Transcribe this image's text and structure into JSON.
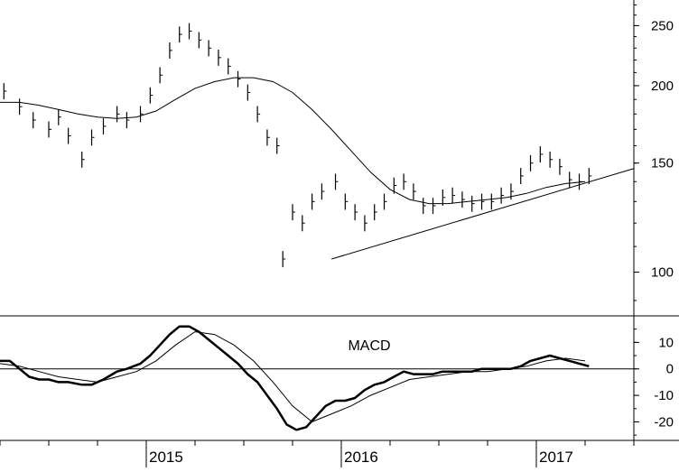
{
  "chart_data": [
    {
      "type": "ohlc",
      "title": "",
      "xlabel": "",
      "ylabel": "",
      "scale": "log",
      "ylim": [
        85,
        275
      ],
      "y_ticks": [
        100,
        150,
        200,
        250
      ],
      "x_year_labels": [
        "2015",
        "2016",
        "2017"
      ],
      "x_range": [
        2014.25,
        2017.5
      ],
      "year_ticks": [
        2015,
        2016,
        2017
      ],
      "grid": false,
      "series": [
        {
          "style": "weekly-bars",
          "points": [
            [
              2014.27,
              196
            ],
            [
              2014.35,
              185
            ],
            [
              2014.42,
              176
            ],
            [
              2014.5,
              170
            ],
            [
              2014.55,
              178
            ],
            [
              2014.6,
              166
            ],
            [
              2014.67,
              152
            ],
            [
              2014.72,
              165
            ],
            [
              2014.78,
              172
            ],
            [
              2014.85,
              180
            ],
            [
              2014.9,
              176
            ],
            [
              2014.97,
              180
            ],
            [
              2015.02,
              193
            ],
            [
              2015.07,
              208
            ],
            [
              2015.12,
              228
            ],
            [
              2015.17,
              242
            ],
            [
              2015.22,
              245
            ],
            [
              2015.27,
              237
            ],
            [
              2015.32,
              230
            ],
            [
              2015.37,
              222
            ],
            [
              2015.42,
              215
            ],
            [
              2015.47,
              205
            ],
            [
              2015.52,
              195
            ],
            [
              2015.57,
              180
            ],
            [
              2015.62,
              165
            ],
            [
              2015.67,
              160
            ],
            [
              2015.7,
              105
            ],
            [
              2015.75,
              125
            ],
            [
              2015.8,
              120
            ],
            [
              2015.85,
              130
            ],
            [
              2015.9,
              135
            ],
            [
              2015.97,
              140
            ],
            [
              2016.02,
              130
            ],
            [
              2016.07,
              125
            ],
            [
              2016.12,
              120
            ],
            [
              2016.17,
              125
            ],
            [
              2016.22,
              130
            ],
            [
              2016.27,
              138
            ],
            [
              2016.32,
              140
            ],
            [
              2016.37,
              135
            ],
            [
              2016.42,
              128
            ],
            [
              2016.47,
              128
            ],
            [
              2016.52,
              132
            ],
            [
              2016.57,
              133
            ],
            [
              2016.62,
              131
            ],
            [
              2016.67,
              129
            ],
            [
              2016.72,
              130
            ],
            [
              2016.77,
              130
            ],
            [
              2016.82,
              133
            ],
            [
              2016.87,
              135
            ],
            [
              2016.92,
              143
            ],
            [
              2016.97,
              150
            ],
            [
              2017.02,
              155
            ],
            [
              2017.07,
              152
            ],
            [
              2017.12,
              148
            ],
            [
              2017.17,
              141
            ],
            [
              2017.22,
              140
            ],
            [
              2017.27,
              143
            ]
          ]
        },
        {
          "style": "moving-average",
          "points": [
            [
              2014.25,
              188
            ],
            [
              2014.35,
              188
            ],
            [
              2014.45,
              186
            ],
            [
              2014.55,
              183
            ],
            [
              2014.65,
              180
            ],
            [
              2014.75,
              178
            ],
            [
              2014.85,
              177
            ],
            [
              2014.95,
              178
            ],
            [
              2015.05,
              182
            ],
            [
              2015.15,
              190
            ],
            [
              2015.25,
              198
            ],
            [
              2015.35,
              203
            ],
            [
              2015.45,
              206
            ],
            [
              2015.55,
              206
            ],
            [
              2015.65,
              203
            ],
            [
              2015.75,
              195
            ],
            [
              2015.85,
              183
            ],
            [
              2015.95,
              170
            ],
            [
              2016.05,
              157
            ],
            [
              2016.15,
              145
            ],
            [
              2016.25,
              136
            ],
            [
              2016.35,
              131
            ],
            [
              2016.45,
              129
            ],
            [
              2016.55,
              129
            ],
            [
              2016.65,
              130
            ],
            [
              2016.75,
              131
            ],
            [
              2016.85,
              132
            ],
            [
              2016.95,
              134
            ],
            [
              2017.05,
              137
            ],
            [
              2017.15,
              139
            ],
            [
              2017.25,
              140
            ]
          ]
        },
        {
          "style": "trendline",
          "points": [
            [
              2015.95,
              105
            ],
            [
              2017.5,
              147
            ]
          ]
        }
      ]
    },
    {
      "type": "line",
      "title": "MACD",
      "xlabel": "",
      "ylabel": "",
      "ylim": [
        -27,
        20
      ],
      "y_ticks": [
        10,
        0,
        -10,
        -20
      ],
      "grid": false,
      "zero_line": true,
      "series": [
        {
          "style": "bold",
          "points": [
            [
              2014.25,
              3
            ],
            [
              2014.3,
              3
            ],
            [
              2014.35,
              0
            ],
            [
              2014.4,
              -3
            ],
            [
              2014.45,
              -4
            ],
            [
              2014.5,
              -4
            ],
            [
              2014.55,
              -5
            ],
            [
              2014.6,
              -5
            ],
            [
              2014.67,
              -6
            ],
            [
              2014.72,
              -6
            ],
            [
              2014.78,
              -4
            ],
            [
              2014.85,
              -1
            ],
            [
              2014.9,
              0
            ],
            [
              2014.97,
              2
            ],
            [
              2015.02,
              5
            ],
            [
              2015.07,
              9
            ],
            [
              2015.12,
              13
            ],
            [
              2015.17,
              16
            ],
            [
              2015.22,
              16
            ],
            [
              2015.27,
              14
            ],
            [
              2015.32,
              11
            ],
            [
              2015.37,
              8
            ],
            [
              2015.42,
              5
            ],
            [
              2015.47,
              2
            ],
            [
              2015.52,
              -2
            ],
            [
              2015.57,
              -5
            ],
            [
              2015.62,
              -10
            ],
            [
              2015.67,
              -15
            ],
            [
              2015.72,
              -21
            ],
            [
              2015.77,
              -23
            ],
            [
              2015.82,
              -22
            ],
            [
              2015.87,
              -18
            ],
            [
              2015.92,
              -14
            ],
            [
              2015.97,
              -12
            ],
            [
              2016.02,
              -12
            ],
            [
              2016.07,
              -11
            ],
            [
              2016.12,
              -8
            ],
            [
              2016.17,
              -6
            ],
            [
              2016.22,
              -5
            ],
            [
              2016.27,
              -3
            ],
            [
              2016.32,
              -1
            ],
            [
              2016.37,
              -2
            ],
            [
              2016.42,
              -2
            ],
            [
              2016.47,
              -2
            ],
            [
              2016.52,
              -1
            ],
            [
              2016.57,
              -1
            ],
            [
              2016.62,
              -1
            ],
            [
              2016.67,
              -1
            ],
            [
              2016.72,
              0
            ],
            [
              2016.77,
              0
            ],
            [
              2016.82,
              0
            ],
            [
              2016.87,
              0
            ],
            [
              2016.92,
              1
            ],
            [
              2016.97,
              3
            ],
            [
              2017.02,
              4
            ],
            [
              2017.07,
              5
            ],
            [
              2017.12,
              4
            ],
            [
              2017.17,
              3
            ],
            [
              2017.22,
              2
            ],
            [
              2017.27,
              1
            ]
          ]
        },
        {
          "style": "thin",
          "points": [
            [
              2014.25,
              2
            ],
            [
              2014.35,
              1
            ],
            [
              2014.45,
              -1
            ],
            [
              2014.55,
              -3
            ],
            [
              2014.65,
              -4
            ],
            [
              2014.75,
              -5
            ],
            [
              2014.85,
              -3
            ],
            [
              2014.95,
              -1
            ],
            [
              2015.05,
              3
            ],
            [
              2015.15,
              9
            ],
            [
              2015.25,
              14
            ],
            [
              2015.35,
              13
            ],
            [
              2015.45,
              9
            ],
            [
              2015.55,
              3
            ],
            [
              2015.65,
              -5
            ],
            [
              2015.75,
              -14
            ],
            [
              2015.85,
              -20
            ],
            [
              2015.95,
              -17
            ],
            [
              2016.05,
              -14
            ],
            [
              2016.15,
              -10
            ],
            [
              2016.25,
              -7
            ],
            [
              2016.35,
              -4
            ],
            [
              2016.45,
              -3
            ],
            [
              2016.55,
              -2
            ],
            [
              2016.65,
              -1
            ],
            [
              2016.75,
              -1
            ],
            [
              2016.85,
              0
            ],
            [
              2016.95,
              1
            ],
            [
              2017.05,
              3
            ],
            [
              2017.15,
              4
            ],
            [
              2017.25,
              3
            ]
          ]
        }
      ]
    }
  ]
}
